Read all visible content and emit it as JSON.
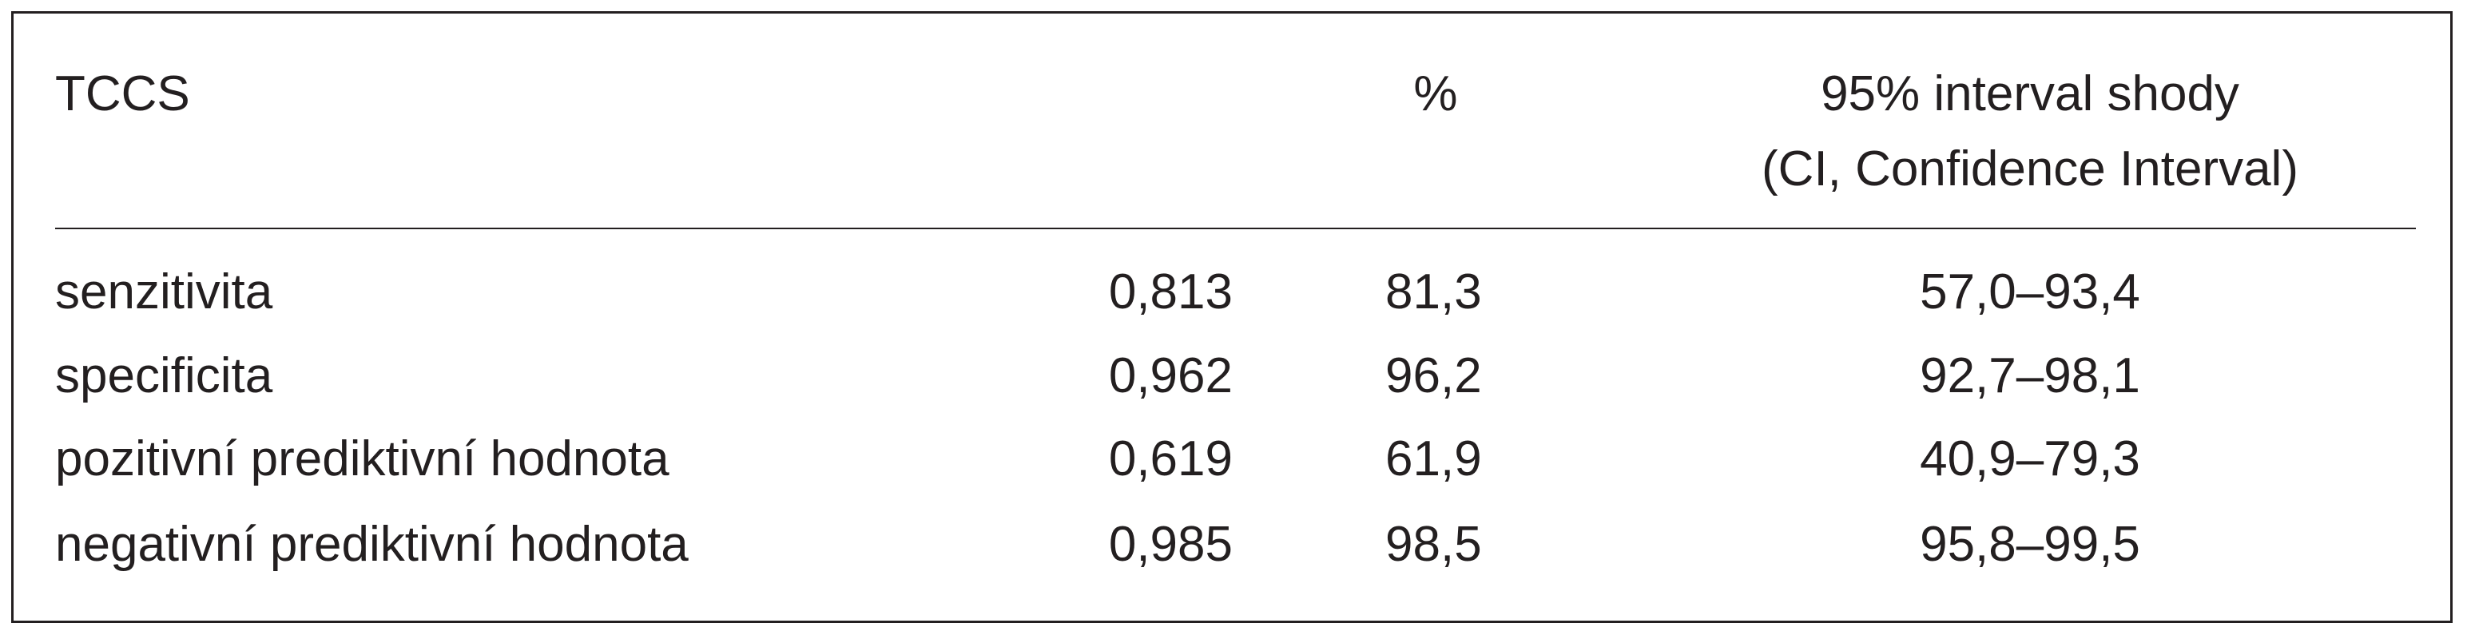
{
  "table": {
    "header": {
      "label": "TCCS",
      "percent": "%",
      "ci": [
        "95% interval shody",
        "(CI, Confidence Interval)"
      ]
    },
    "rows": [
      [
        "senzitivita",
        "0,813",
        "81,3",
        "57,0–93,4"
      ],
      [
        "specificita",
        "0,962",
        "96,2",
        "92,7–98,1"
      ],
      [
        "pozitivní prediktivní hodnota",
        "0,619",
        "61,9",
        "40,9–79,3"
      ],
      [
        "negativní prediktivní hodnota",
        "0,985",
        "98,5",
        "95,8–99,5"
      ]
    ]
  }
}
